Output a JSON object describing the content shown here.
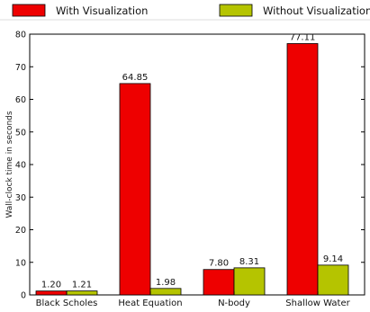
{
  "chart_data": {
    "type": "bar",
    "categories": [
      "Black Scholes",
      "Heat Equation",
      "N-body",
      "Shallow Water"
    ],
    "series": [
      {
        "name": "With Visualization",
        "color": "#ee0000",
        "values": [
          1.2,
          64.85,
          7.8,
          77.11
        ]
      },
      {
        "name": "Without Visualization",
        "color": "#b5c400",
        "values": [
          1.21,
          1.98,
          8.31,
          9.14
        ]
      }
    ],
    "data_labels": [
      [
        "1.20",
        "64.85",
        "7.80",
        "77.11"
      ],
      [
        "1.21",
        "1.98",
        "8.31",
        "9.14"
      ]
    ],
    "title": "",
    "xlabel": "",
    "ylabel": "Wall-clock time in seconds",
    "ylim": [
      0,
      80
    ],
    "yticks": [
      0,
      10,
      20,
      30,
      40,
      50,
      60,
      70,
      80
    ],
    "grid": false,
    "legend_position": "top"
  }
}
